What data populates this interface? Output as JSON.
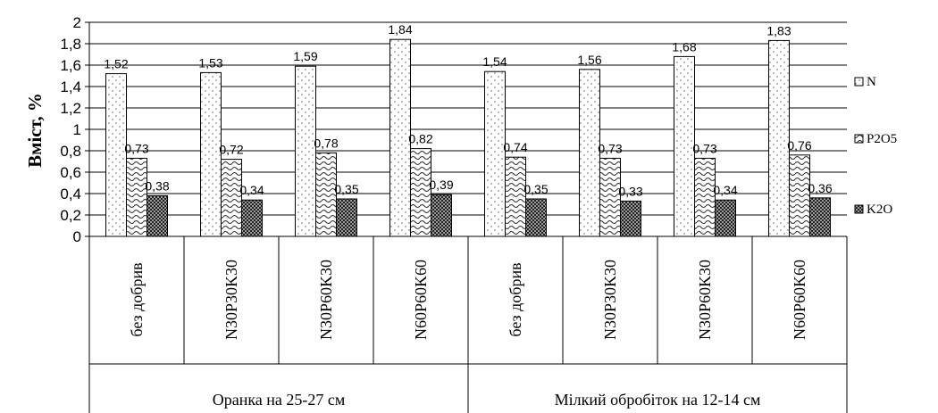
{
  "chart_data": {
    "type": "bar",
    "ylabel": "Вміст, %",
    "xlabel": "",
    "ylim": [
      0,
      2
    ],
    "yticks": [
      "0",
      "0,2",
      "0,4",
      "0,6",
      "0,8",
      "1",
      "1,2",
      "1,4",
      "1,6",
      "1,8",
      "2"
    ],
    "grid": true,
    "legend_position": "right",
    "groups": [
      {
        "label": "Оранка на 25-27 см",
        "categories": [
          "без добрив",
          "N30P30K30",
          "N30P60K30",
          "N60P60K60"
        ]
      },
      {
        "label": "Мілкий обробіток на 12-14 см",
        "categories": [
          "без добрив",
          "N30P30K30",
          "N30P60K30",
          "N60P60K60"
        ]
      }
    ],
    "categories": [
      "без добрив",
      "N30P30K30",
      "N30P60K30",
      "N60P60K60",
      "без добрив",
      "N30P30K30",
      "N30P60K30",
      "N60P60K60"
    ],
    "series": [
      {
        "name": "N",
        "values": [
          1.52,
          1.53,
          1.59,
          1.84,
          1.54,
          1.56,
          1.68,
          1.83
        ],
        "labels": [
          "1,52",
          "1,53",
          "1,59",
          "1,84",
          "1,54",
          "1,56",
          "1,68",
          "1,83"
        ],
        "pattern": "dots"
      },
      {
        "name": "P2O5",
        "values": [
          0.73,
          0.72,
          0.78,
          0.82,
          0.74,
          0.73,
          0.73,
          0.76
        ],
        "labels": [
          "0,73",
          "0,72",
          "0,78",
          "0,82",
          "0,74",
          "0,73",
          "0,73",
          "0,76"
        ],
        "pattern": "wave"
      },
      {
        "name": "K2O",
        "values": [
          0.38,
          0.34,
          0.35,
          0.39,
          0.35,
          0.33,
          0.34,
          0.36
        ],
        "labels": [
          "0,38",
          "0,34",
          "0,35",
          "0,39",
          "0,35",
          "0,33",
          "0,34",
          "0,36"
        ],
        "pattern": "checker"
      }
    ]
  }
}
